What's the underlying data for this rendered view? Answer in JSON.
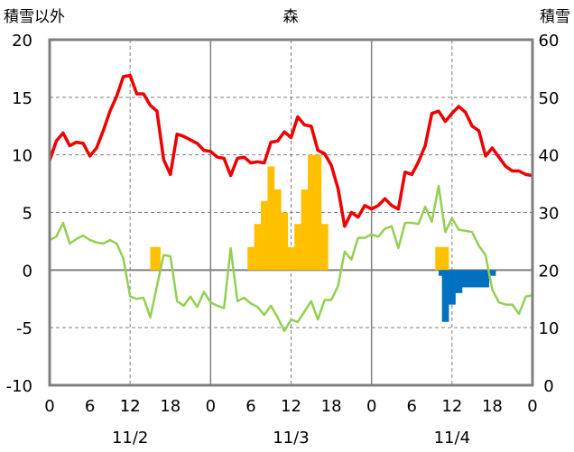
{
  "chart_data": {
    "type": "line",
    "title": "森",
    "left_axis_title": "積雪以外",
    "right_axis_title": "積雪",
    "y_left": {
      "min": -10,
      "max": 20,
      "ticks": [
        "20",
        "15",
        "10",
        "5",
        "0",
        "-5",
        "-10"
      ]
    },
    "y_right": {
      "min": 0,
      "max": 60,
      "ticks": [
        "60",
        "50",
        "40",
        "30",
        "20",
        "10",
        "0"
      ]
    },
    "x_hours": {
      "min": 0,
      "max": 72
    },
    "hour_ticks": [
      "0",
      "12",
      "6",
      "12",
      "18",
      "0",
      "6",
      "12",
      "18",
      "0",
      "6",
      "12",
      "18",
      "0"
    ],
    "hour_tick_values": [
      0,
      12,
      30,
      36,
      42,
      24,
      6,
      12,
      18,
      48,
      54,
      60,
      66,
      72
    ],
    "date_labels": [
      "11/2",
      "11/3",
      "11/4"
    ],
    "date_label_hours": [
      12,
      36,
      60
    ],
    "grid": true,
    "colors": {
      "temperature": "#ee0000",
      "dewpoint": "#92d050",
      "precipitation": "#ffc000",
      "snow_change": "#0070c0",
      "snow_depth": "#7030a0"
    },
    "series": [
      {
        "key": "temperature",
        "x": [
          0,
          1,
          2,
          3,
          4,
          5,
          6,
          7,
          8,
          9,
          10,
          11,
          12,
          13,
          14,
          15,
          16,
          17,
          18,
          19,
          20,
          21,
          22,
          23,
          24,
          25,
          26,
          27,
          28,
          29,
          30,
          31,
          32,
          33,
          34,
          35,
          36,
          37,
          38,
          39,
          40,
          41,
          42,
          43,
          44,
          45,
          46,
          47,
          48,
          49,
          50,
          51,
          52,
          53,
          54,
          55,
          56,
          57,
          58,
          59,
          60,
          61,
          62,
          63,
          64,
          65,
          66,
          67,
          68,
          69,
          70,
          71,
          72
        ],
        "values": [
          9.5,
          11.2,
          11.9,
          10.8,
          11.1,
          11,
          9.9,
          10.6,
          12.1,
          13.8,
          15.1,
          16.8,
          16.9,
          15.3,
          15.3,
          14.3,
          13.8,
          9.6,
          8.3,
          11.8,
          11.6,
          11.3,
          11,
          10.4,
          10.3,
          9.8,
          9.7,
          8.2,
          9.7,
          9.8,
          9.3,
          9.4,
          9.3,
          11.1,
          11.2,
          12,
          11.5,
          13.3,
          12.6,
          12.5,
          10.4,
          10.1,
          9.1,
          7.1,
          3.8,
          5,
          4.6,
          5.6,
          5.3,
          5.6,
          6.2,
          5.6,
          5.3,
          8.5,
          8.3,
          9.4,
          10.8,
          13.6,
          13.8,
          12.9,
          13.6,
          14.2,
          13.7,
          12.5,
          12.1,
          9.9,
          10.6,
          9.8,
          9,
          8.6,
          8.6,
          8.3,
          8.2
        ]
      },
      {
        "key": "dewpoint",
        "x": [
          0,
          1,
          2,
          3,
          4,
          5,
          6,
          7,
          8,
          9,
          10,
          11,
          12,
          13,
          14,
          15,
          16,
          17,
          18,
          19,
          20,
          21,
          22,
          23,
          24,
          25,
          26,
          27,
          28,
          29,
          30,
          31,
          32,
          33,
          34,
          35,
          36,
          37,
          38,
          39,
          40,
          41,
          42,
          43,
          44,
          45,
          46,
          47,
          48,
          49,
          50,
          51,
          52,
          53,
          54,
          55,
          56,
          57,
          58,
          59,
          60,
          61,
          62,
          63,
          64,
          65,
          66,
          67,
          68,
          69,
          70,
          71,
          72
        ],
        "values": [
          2.6,
          2.9,
          4.1,
          2.3,
          2.7,
          3,
          2.6,
          2.4,
          2.3,
          2.6,
          2.3,
          1,
          -2.3,
          -2.5,
          -2.4,
          -4.1,
          -1.4,
          1.3,
          1.2,
          -2.7,
          -3.1,
          -2.3,
          -3.2,
          -1.9,
          -2.8,
          -3.1,
          -3.3,
          1.9,
          -2.7,
          -2.4,
          -2.9,
          -3.2,
          -3.9,
          -3.1,
          -4.1,
          -5.3,
          -4.3,
          -4.5,
          -3.6,
          -2.7,
          -4.3,
          -2.6,
          -2.6,
          -1.4,
          1.6,
          0.9,
          2.8,
          2.8,
          3.1,
          2.9,
          3.6,
          3.8,
          1.9,
          4.1,
          4.1,
          4,
          5.5,
          4.2,
          7.3,
          3.3,
          4.5,
          3.5,
          3.4,
          3.3,
          2.1,
          1.3,
          -1.7,
          -2.8,
          -3,
          -3,
          -3.8,
          -2.3,
          -2.2
        ]
      },
      {
        "key": "snow_depth",
        "axis": "right",
        "x": [
          0,
          72
        ],
        "values": [
          0,
          0
        ]
      }
    ],
    "bar_series": [
      {
        "key": "precipitation",
        "base": 0,
        "x": [
          15.5,
          16,
          30,
          31,
          32,
          33,
          34,
          35,
          36,
          37,
          38,
          39,
          40,
          41,
          58,
          59
        ],
        "values": [
          2,
          2,
          2,
          4,
          6,
          9,
          7,
          5,
          2,
          4,
          7,
          10,
          10,
          4,
          2,
          2
        ]
      },
      {
        "key": "snow_change",
        "base": 0,
        "x": [
          58.5,
          59,
          60,
          61,
          62,
          63,
          64,
          65,
          66
        ],
        "values": [
          -0.5,
          -4.5,
          -3,
          -2,
          -1.5,
          -1.5,
          -1.5,
          -1.5,
          -0.5
        ]
      }
    ]
  }
}
